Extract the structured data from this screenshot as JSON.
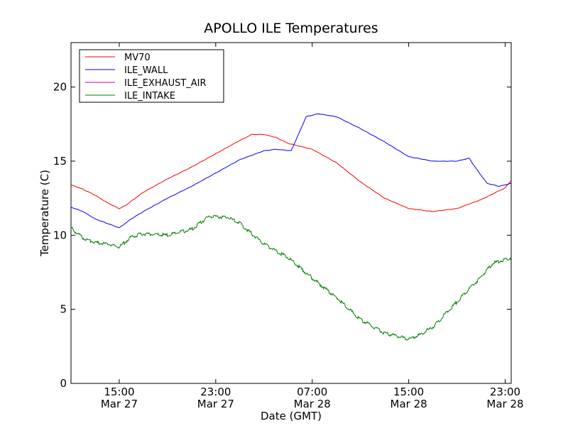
{
  "chart_data": {
    "type": "line",
    "title": "APOLLO ILE Temperatures",
    "xlabel": "Date (GMT)",
    "ylabel": "Temperature (C)",
    "ylim": [
      0,
      23
    ],
    "xlim": [
      "2014-03-27T11:00",
      "2014-03-28T23:30"
    ],
    "grid": false,
    "legend_position": "top-left",
    "y_ticks": [
      0,
      5,
      10,
      15,
      20
    ],
    "x_ticks": [
      {
        "x": "2014-03-27T15:00",
        "time": "15:00",
        "date": "Mar 27"
      },
      {
        "x": "2014-03-27T23:00",
        "time": "23:00",
        "date": "Mar 27"
      },
      {
        "x": "2014-03-28T07:00",
        "time": "07:00",
        "date": "Mar 28"
      },
      {
        "x": "2014-03-28T15:00",
        "time": "15:00",
        "date": "Mar 28"
      },
      {
        "x": "2014-03-28T23:00",
        "time": "23:00",
        "date": "Mar 28"
      }
    ],
    "series": [
      {
        "name": "MV70",
        "color": "#ff0000",
        "points": [
          [
            "2014-03-27T11:00",
            13.4
          ],
          [
            "2014-03-27T12:00",
            13.1
          ],
          [
            "2014-03-27T13:00",
            12.7
          ],
          [
            "2014-03-27T14:00",
            12.2
          ],
          [
            "2014-03-27T15:00",
            11.8
          ],
          [
            "2014-03-27T15:30",
            12.0
          ],
          [
            "2014-03-27T17:00",
            12.9
          ],
          [
            "2014-03-27T19:00",
            13.8
          ],
          [
            "2014-03-27T21:00",
            14.6
          ],
          [
            "2014-03-27T23:00",
            15.5
          ],
          [
            "2014-03-28T01:00",
            16.4
          ],
          [
            "2014-03-28T02:00",
            16.8
          ],
          [
            "2014-03-28T03:00",
            16.8
          ],
          [
            "2014-03-28T04:00",
            16.6
          ],
          [
            "2014-03-28T05:00",
            16.2
          ],
          [
            "2014-03-28T07:00",
            15.8
          ],
          [
            "2014-03-28T09:00",
            14.9
          ],
          [
            "2014-03-28T11:00",
            13.6
          ],
          [
            "2014-03-28T13:00",
            12.5
          ],
          [
            "2014-03-28T15:00",
            11.8
          ],
          [
            "2014-03-28T17:00",
            11.6
          ],
          [
            "2014-03-28T19:00",
            11.8
          ],
          [
            "2014-03-28T21:00",
            12.4
          ],
          [
            "2014-03-28T23:00",
            13.2
          ],
          [
            "2014-03-28T23:30",
            13.7
          ]
        ]
      },
      {
        "name": "ILE_WALL",
        "color": "#0000ff",
        "points": [
          [
            "2014-03-27T11:00",
            11.9
          ],
          [
            "2014-03-27T12:00",
            11.6
          ],
          [
            "2014-03-27T13:00",
            11.1
          ],
          [
            "2014-03-27T14:00",
            10.8
          ],
          [
            "2014-03-27T15:00",
            10.5
          ],
          [
            "2014-03-27T16:00",
            11.1
          ],
          [
            "2014-03-27T17:00",
            11.6
          ],
          [
            "2014-03-27T19:00",
            12.5
          ],
          [
            "2014-03-27T21:00",
            13.3
          ],
          [
            "2014-03-27T23:00",
            14.2
          ],
          [
            "2014-03-28T01:00",
            15.1
          ],
          [
            "2014-03-28T03:00",
            15.7
          ],
          [
            "2014-03-28T04:00",
            15.8
          ],
          [
            "2014-03-28T05:15",
            15.7
          ],
          [
            "2014-03-28T05:45",
            16.6
          ],
          [
            "2014-03-28T06:30",
            18.0
          ],
          [
            "2014-03-28T07:30",
            18.2
          ],
          [
            "2014-03-28T09:00",
            18.0
          ],
          [
            "2014-03-28T11:00",
            17.2
          ],
          [
            "2014-03-28T13:00",
            16.3
          ],
          [
            "2014-03-28T15:00",
            15.3
          ],
          [
            "2014-03-28T17:00",
            15.0
          ],
          [
            "2014-03-28T19:00",
            15.0
          ],
          [
            "2014-03-28T20:00",
            15.2
          ],
          [
            "2014-03-28T20:30",
            14.6
          ],
          [
            "2014-03-28T21:30",
            13.5
          ],
          [
            "2014-03-28T22:30",
            13.3
          ],
          [
            "2014-03-28T23:30",
            13.5
          ]
        ]
      },
      {
        "name": "ILE_EXHAUST_AIR",
        "color": "#bf00bf",
        "points": []
      },
      {
        "name": "ILE_INTAKE",
        "color": "#008000",
        "points": [
          [
            "2014-03-27T11:00",
            10.5
          ],
          [
            "2014-03-27T12:00",
            9.8
          ],
          [
            "2014-03-27T13:00",
            9.5
          ],
          [
            "2014-03-27T14:00",
            9.4
          ],
          [
            "2014-03-27T15:00",
            9.2
          ],
          [
            "2014-03-27T16:00",
            9.9
          ],
          [
            "2014-03-27T17:00",
            10.1
          ],
          [
            "2014-03-27T19:00",
            10.0
          ],
          [
            "2014-03-27T21:00",
            10.4
          ],
          [
            "2014-03-27T22:30",
            11.3
          ],
          [
            "2014-03-28T00:00",
            11.2
          ],
          [
            "2014-03-28T01:00",
            10.8
          ],
          [
            "2014-03-28T03:00",
            9.4
          ],
          [
            "2014-03-28T05:00",
            8.5
          ],
          [
            "2014-03-28T07:00",
            7.1
          ],
          [
            "2014-03-28T09:00",
            5.8
          ],
          [
            "2014-03-28T11:00",
            4.3
          ],
          [
            "2014-03-28T13:00",
            3.4
          ],
          [
            "2014-03-28T15:00",
            3.0
          ],
          [
            "2014-03-28T16:00",
            3.3
          ],
          [
            "2014-03-28T17:00",
            3.8
          ],
          [
            "2014-03-28T19:00",
            5.5
          ],
          [
            "2014-03-28T21:00",
            7.2
          ],
          [
            "2014-03-28T22:00",
            8.1
          ],
          [
            "2014-03-28T23:30",
            8.5
          ]
        ]
      }
    ]
  }
}
